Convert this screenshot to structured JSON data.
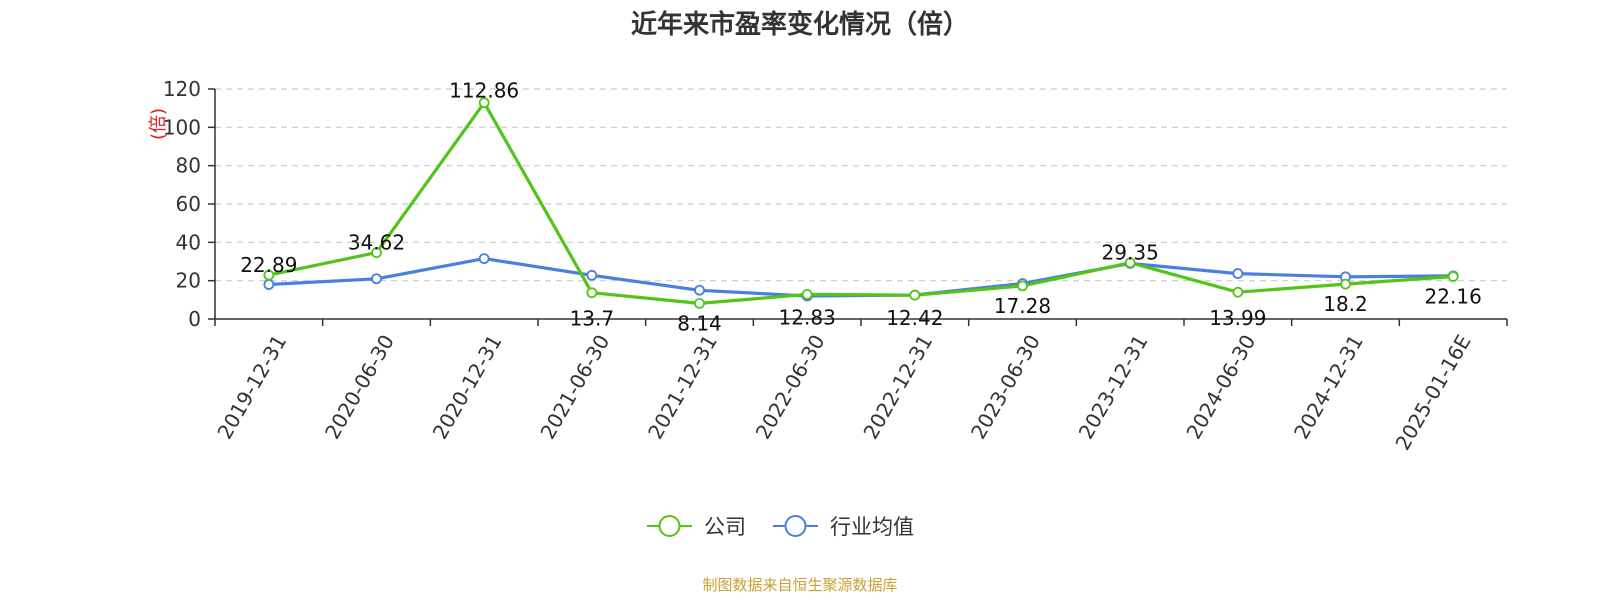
{
  "chart_data": {
    "type": "line",
    "title": "近年来市盈率变化情况（倍）",
    "ylabel": "(倍)",
    "ylim": [
      0,
      120
    ],
    "yticks": [
      0,
      20,
      40,
      60,
      80,
      100,
      120
    ],
    "grid": true,
    "legend_position": "bottom",
    "categories": [
      "2019-12-31",
      "2020-06-30",
      "2020-12-31",
      "2021-06-30",
      "2021-12-31",
      "2022-06-30",
      "2022-12-31",
      "2023-06-30",
      "2023-12-31",
      "2024-06-30",
      "2024-12-31",
      "2025-01-16E"
    ],
    "series": [
      {
        "name": "公司",
        "color": "#52c41a",
        "values": [
          22.89,
          34.62,
          112.86,
          13.7,
          8.14,
          12.83,
          12.42,
          17.28,
          29.35,
          13.99,
          18.2,
          22.16
        ],
        "labels": [
          "22.89",
          "34.62",
          "112.86",
          "13.7",
          "8.14",
          "12.83",
          "12.42",
          "17.28",
          "29.35",
          "13.99",
          "18.2",
          "22.16"
        ]
      },
      {
        "name": "行业均值",
        "color": "#4a7fe0",
        "values": [
          18.0,
          21.0,
          31.5,
          22.8,
          15.0,
          12.0,
          12.5,
          18.5,
          29.0,
          23.7,
          22.0,
          22.5
        ]
      }
    ],
    "source": "制图数据来自恒生聚源数据库",
    "colors": {
      "ylabel": "#e02020",
      "source": "#c9a032",
      "axis": "#333333",
      "grid": "#cccccc"
    }
  }
}
